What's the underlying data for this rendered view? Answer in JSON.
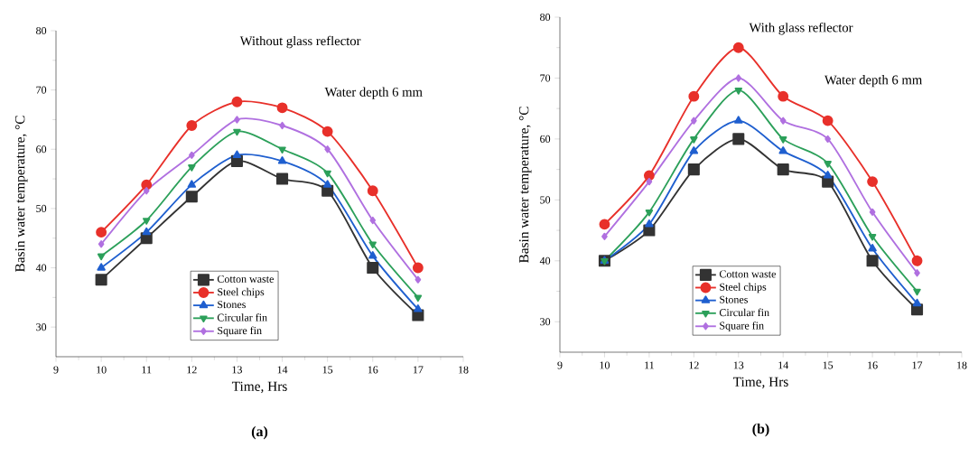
{
  "chart_data": [
    {
      "type": "line",
      "title": "Without glass reflector",
      "xlabel": "Time, Hrs",
      "ylabel": "Basin water temperature, °C",
      "x": [
        10,
        11,
        12,
        13,
        14,
        15,
        16,
        17
      ],
      "xlim": [
        9,
        18
      ],
      "xticks": [
        9,
        10,
        11,
        12,
        13,
        14,
        15,
        16,
        17,
        18
      ],
      "ylim": [
        25,
        80
      ],
      "yticks": [
        30,
        40,
        50,
        60,
        70,
        80
      ],
      "legend": "bottom",
      "annotations": [
        "Water depth 6 mm",
        "(a)"
      ],
      "series": [
        {
          "name": "Cotton waste",
          "color": "#333333",
          "marker": "square",
          "values": [
            38,
            45,
            52,
            58,
            55,
            53,
            40,
            32
          ]
        },
        {
          "name": "Steel chips",
          "color": "#e8302a",
          "marker": "circle",
          "values": [
            46,
            54,
            64,
            68,
            67,
            63,
            53,
            40
          ]
        },
        {
          "name": "Stones",
          "color": "#1f5fcf",
          "marker": "triangle",
          "values": [
            40,
            46,
            54,
            59,
            58,
            54,
            42,
            33
          ]
        },
        {
          "name": "Circular fin",
          "color": "#2ca05a",
          "marker": "triangle-down",
          "values": [
            42,
            48,
            57,
            63,
            60,
            56,
            44,
            35
          ]
        },
        {
          "name": "Square fin",
          "color": "#b070e0",
          "marker": "diamond",
          "values": [
            44,
            53,
            59,
            65,
            64,
            60,
            48,
            38
          ]
        }
      ]
    },
    {
      "type": "line",
      "title": "With glass reflector",
      "xlabel": "Time, Hrs",
      "ylabel": "Basin water temperature, °C",
      "x": [
        10,
        11,
        12,
        13,
        14,
        15,
        16,
        17
      ],
      "xlim": [
        9,
        18
      ],
      "xticks": [
        9,
        10,
        11,
        12,
        13,
        14,
        15,
        16,
        17,
        18
      ],
      "ylim": [
        25,
        80
      ],
      "yticks": [
        30,
        40,
        50,
        60,
        70,
        80
      ],
      "legend": "bottom",
      "annotations": [
        "Water depth 6 mm",
        "(b)"
      ],
      "series": [
        {
          "name": "Cotton waste",
          "color": "#333333",
          "marker": "square",
          "values": [
            40,
            45,
            55,
            60,
            55,
            53,
            40,
            32
          ]
        },
        {
          "name": "Steel chips",
          "color": "#e8302a",
          "marker": "circle",
          "values": [
            46,
            54,
            67,
            75,
            67,
            63,
            53,
            40
          ]
        },
        {
          "name": "Stones",
          "color": "#1f5fcf",
          "marker": "triangle",
          "values": [
            40,
            46,
            58,
            63,
            58,
            54,
            42,
            33
          ]
        },
        {
          "name": "Circular fin",
          "color": "#2ca05a",
          "marker": "triangle-down",
          "values": [
            40,
            48,
            60,
            68,
            60,
            56,
            44,
            35
          ]
        },
        {
          "name": "Square fin",
          "color": "#b070e0",
          "marker": "diamond",
          "values": [
            44,
            53,
            63,
            70,
            63,
            60,
            48,
            38
          ]
        }
      ]
    }
  ]
}
